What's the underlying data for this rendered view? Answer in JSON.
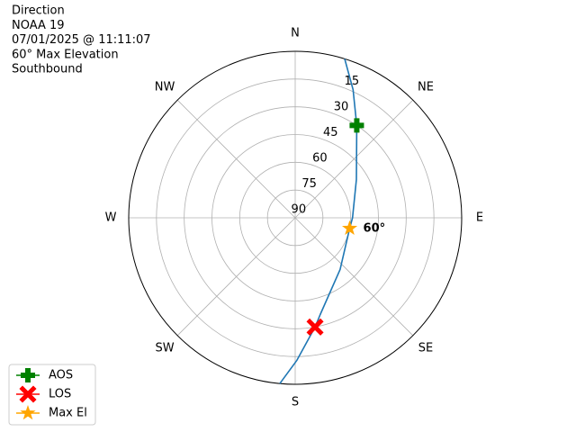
{
  "chart_data": {
    "type": "polar",
    "title_lines": [
      "Direction",
      "NOAA 19",
      "07/01/2025 @ 11:11:07",
      "60° Max Elevation",
      "Southbound"
    ],
    "theta_direction": "clockwise",
    "theta_zero": "N",
    "thetaticks": [
      {
        "value": 0,
        "label": "N"
      },
      {
        "value": 45,
        "label": "NE"
      },
      {
        "value": 90,
        "label": "E"
      },
      {
        "value": 135,
        "label": "SE"
      },
      {
        "value": 180,
        "label": "S"
      },
      {
        "value": 225,
        "label": "SW"
      },
      {
        "value": 270,
        "label": "W"
      },
      {
        "value": 315,
        "label": "NW"
      }
    ],
    "rlim": [
      90,
      0
    ],
    "rticks": [
      15,
      30,
      45,
      60,
      75,
      90
    ],
    "grid": true,
    "track": {
      "color": "#1f77b4",
      "az": [
        17.3,
        24.3,
        33.7,
        58,
        90,
        101,
        139,
        165.5,
        169.7,
        179.3,
        185.3
      ],
      "el": [
        0,
        14,
        30,
        51,
        59,
        60,
        53,
        36,
        30,
        13,
        0
      ]
    },
    "markers": [
      {
        "name": "AOS",
        "color": "green",
        "marker": "plus",
        "az": 33.7,
        "el": 30
      },
      {
        "name": "LOS",
        "color": "red",
        "marker": "x",
        "az": 169.7,
        "el": 30
      },
      {
        "name": "Max El",
        "color": "orange",
        "marker": "star",
        "az": 101,
        "el": 60,
        "annotation": "60°"
      }
    ],
    "legend": "lower left"
  }
}
